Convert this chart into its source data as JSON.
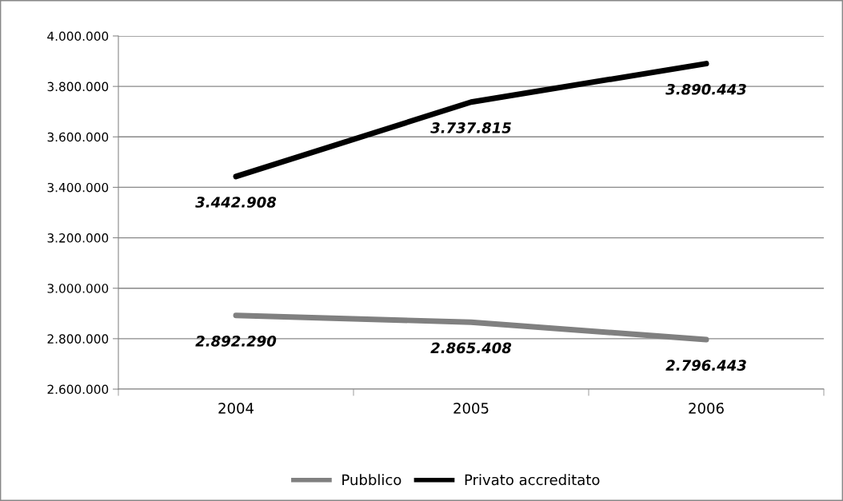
{
  "chart_data": {
    "type": "line",
    "categories": [
      "2004",
      "2005",
      "2006"
    ],
    "series": [
      {
        "name": "Pubblico",
        "color": "#808080",
        "values": [
          2892290,
          2865408,
          2796443
        ],
        "value_labels": [
          "2.892.290",
          "2.865.408",
          "2.796.443"
        ]
      },
      {
        "name": "Privato accreditato",
        "color": "#000000",
        "values": [
          3442908,
          3737815,
          3890443
        ],
        "value_labels": [
          "3.442.908",
          "3.737.815",
          "3.890.443"
        ]
      }
    ],
    "ylim": [
      2600000,
      4000000
    ],
    "yticks": [
      {
        "value": 2600000,
        "label": "2.600.000"
      },
      {
        "value": 2800000,
        "label": "2.800.000"
      },
      {
        "value": 3000000,
        "label": "3.000.000"
      },
      {
        "value": 3200000,
        "label": "3.200.000"
      },
      {
        "value": 3400000,
        "label": "3.400.000"
      },
      {
        "value": 3600000,
        "label": "3.600.000"
      },
      {
        "value": 3800000,
        "label": "3.800.000"
      },
      {
        "value": 4000000,
        "label": "4.000.000"
      }
    ],
    "grid": "y",
    "legend": "bottom",
    "marker": "none",
    "line_style": "solid"
  }
}
